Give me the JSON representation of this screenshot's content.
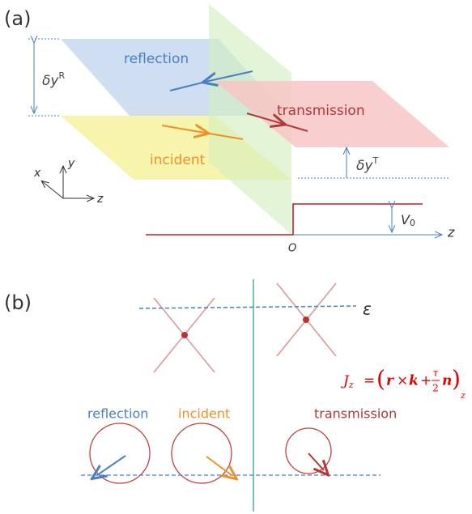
{
  "panel_a": {
    "label": "(a)",
    "planes": {
      "reflection": "reflection",
      "transmission": "transmission",
      "incident": "incident"
    },
    "shift_reflection": {
      "symbol": "δy",
      "superscript": "R"
    },
    "shift_transmission": {
      "symbol": "δy",
      "superscript": "T"
    },
    "axes": {
      "x": "x",
      "y": "y",
      "z": "z"
    },
    "potential": {
      "symbol": "V",
      "subscript": "0",
      "axis": "z",
      "origin": "O"
    }
  },
  "panel_b": {
    "label": "(b)",
    "energy": "ε",
    "labels": {
      "reflection": "reflection",
      "incident": "incident",
      "transmission": "transmission"
    },
    "formula": {
      "lhs": "J",
      "lhs_sub": "z",
      "equals": "=",
      "open": "(",
      "r": "r",
      "times": "×",
      "k": "k",
      "plus": "+",
      "numerator": "τ",
      "denominator": "2",
      "n": "n",
      "close": ")",
      "sub": "z"
    }
  }
}
